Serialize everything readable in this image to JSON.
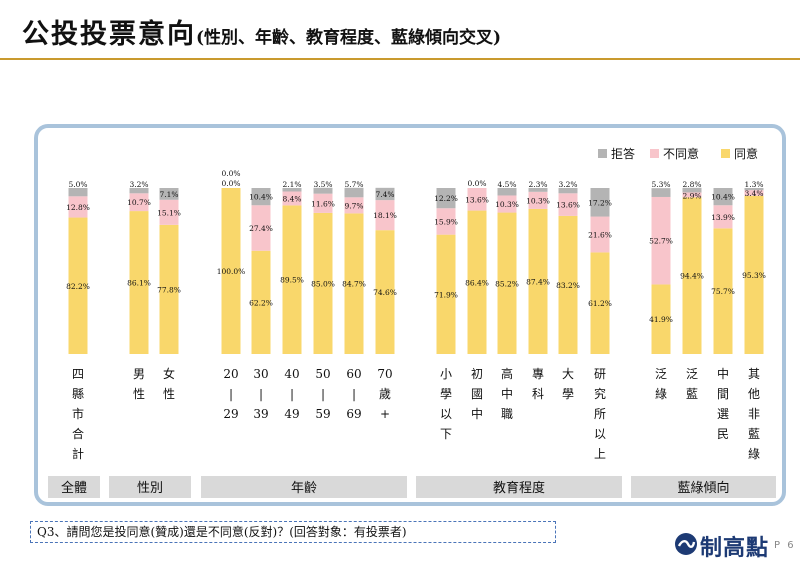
{
  "header": {
    "title": "公投投票意向",
    "subtitle": "(性別、年齡、教育程度、藍綠傾向交叉)"
  },
  "question": "Q3、請問您是投同意(贊成)還是不同意(反對)？(回答對象：有投票者)",
  "logo": {
    "text": "制高點",
    "icon": "wave-logo-icon"
  },
  "page_number": "P 6",
  "colors": {
    "agree": "#F9D76B",
    "disagree": "#F8C5CB",
    "refuse": "#B4B4B4",
    "group_bg": "#D9D9D9",
    "frame": "#A9C3DB",
    "title_rule": "#C99A2E"
  },
  "chart_data": {
    "type": "bar",
    "stacked": true,
    "legend_position": "top-right",
    "grid": false,
    "ylim": [
      0,
      100
    ],
    "series": [
      {
        "name": "同意",
        "key": "agree"
      },
      {
        "name": "不同意",
        "key": "disagree"
      },
      {
        "name": "拒答",
        "key": "refuse"
      }
    ],
    "legend_order": [
      "refuse",
      "disagree",
      "agree"
    ],
    "categories": [
      {
        "label": "四縣市合計",
        "group": 0,
        "agree": 82.2,
        "disagree": 12.8,
        "refuse": 5.0,
        "labels": {
          "agree": "82.2%",
          "disagree": "12.8%",
          "refuse": "5.0%"
        }
      },
      {
        "label": "男性",
        "group": 1,
        "agree": 86.1,
        "disagree": 10.7,
        "refuse": 3.2,
        "labels": {
          "agree": "86.1%",
          "disagree": "10.7%",
          "refuse": "3.2%"
        }
      },
      {
        "label": "女性",
        "group": 1,
        "agree": 77.8,
        "disagree": 15.1,
        "refuse": 7.1,
        "labels": {
          "agree": "77.8%",
          "disagree": "15.1%",
          "refuse": "7.1%"
        }
      },
      {
        "label": [
          "20",
          "|",
          "29"
        ],
        "group": 2,
        "agree": 100.0,
        "disagree": 0.0,
        "refuse": 0.0,
        "labels": {
          "agree": "100.0%",
          "disagree": "0.0%",
          "refuse": "0.0%"
        }
      },
      {
        "label": [
          "30",
          "|",
          "39"
        ],
        "group": 2,
        "agree": 62.2,
        "disagree": 27.4,
        "refuse": 10.4,
        "labels": {
          "agree": "62.2%",
          "disagree": "27.4%",
          "refuse": "10.4%"
        }
      },
      {
        "label": [
          "40",
          "|",
          "49"
        ],
        "group": 2,
        "agree": 89.5,
        "disagree": 8.4,
        "refuse": 2.1,
        "labels": {
          "agree": "89.5%",
          "disagree": "8.4%",
          "refuse": "2.1%"
        }
      },
      {
        "label": [
          "50",
          "|",
          "59"
        ],
        "group": 2,
        "agree": 85.0,
        "disagree": 11.6,
        "refuse": 3.5,
        "labels": {
          "agree": "85.0%",
          "disagree": "11.6%",
          "refuse": "3.5%"
        }
      },
      {
        "label": [
          "60",
          "|",
          "69"
        ],
        "group": 2,
        "agree": 84.7,
        "disagree": 9.7,
        "refuse": 5.7,
        "labels": {
          "agree": "84.7%",
          "disagree": "9.7%",
          "refuse": "5.7%"
        }
      },
      {
        "label": [
          "70",
          "歲",
          "+"
        ],
        "group": 2,
        "agree": 74.6,
        "disagree": 18.1,
        "refuse": 7.4,
        "labels": {
          "agree": "74.6%",
          "disagree": "18.1%",
          "refuse": "7.4%"
        }
      },
      {
        "label": "小學以下",
        "group": 3,
        "agree": 71.9,
        "disagree": 15.9,
        "refuse": 12.2,
        "labels": {
          "agree": "71.9%",
          "disagree": "15.9%",
          "refuse": "12.2%"
        }
      },
      {
        "label": "初國中",
        "group": 3,
        "agree": 86.4,
        "disagree": 13.6,
        "refuse": 0.0,
        "labels": {
          "agree": "86.4%",
          "disagree": "13.6%",
          "refuse": "0.0%"
        }
      },
      {
        "label": "高中職",
        "group": 3,
        "agree": 85.2,
        "disagree": 10.3,
        "refuse": 4.5,
        "labels": {
          "agree": "85.2%",
          "disagree": "10.3%",
          "refuse": "4.5%"
        }
      },
      {
        "label": "專科",
        "group": 3,
        "agree": 87.4,
        "disagree": 10.3,
        "refuse": 2.3,
        "labels": {
          "agree": "87.4%",
          "disagree": "10.3%",
          "refuse": "2.3%"
        }
      },
      {
        "label": "大學",
        "group": 3,
        "agree": 83.2,
        "disagree": 13.6,
        "refuse": 3.2,
        "labels": {
          "agree": "83.2%",
          "disagree": "13.6%",
          "refuse": "3.2%"
        }
      },
      {
        "label": "研究所以上",
        "group": 3,
        "agree": 61.2,
        "disagree": 21.6,
        "refuse": 17.2,
        "labels": {
          "agree": "61.2%",
          "disagree": "21.6%",
          "refuse": "17.2%"
        }
      },
      {
        "label": "泛綠",
        "group": 4,
        "agree": 41.9,
        "disagree": 52.7,
        "refuse": 5.3,
        "labels": {
          "agree": "41.9%",
          "disagree": "52.7%",
          "refuse": "5.3%"
        }
      },
      {
        "label": "泛藍",
        "group": 4,
        "agree": 94.4,
        "disagree": 2.9,
        "refuse": 2.8,
        "labels": {
          "agree": "94.4%",
          "disagree": "2.9%",
          "refuse": "2.8%"
        }
      },
      {
        "label": "中間選民",
        "group": 4,
        "agree": 75.7,
        "disagree": 13.9,
        "refuse": 10.4,
        "labels": {
          "agree": "75.7%",
          "disagree": "13.9%",
          "refuse": "10.4%"
        }
      },
      {
        "label": "其他非藍綠",
        "group": 4,
        "agree": 95.3,
        "disagree": 3.4,
        "refuse": 1.3,
        "labels": {
          "agree": "95.3%",
          "disagree": "3.4%",
          "refuse": "1.3%"
        }
      }
    ],
    "groups": [
      {
        "label": "全體",
        "first": 0,
        "last": 0
      },
      {
        "label": "性別",
        "first": 1,
        "last": 2
      },
      {
        "label": "年齡",
        "first": 3,
        "last": 8
      },
      {
        "label": "教育程度",
        "first": 9,
        "last": 14
      },
      {
        "label": "藍綠傾向",
        "first": 15,
        "last": 18
      }
    ]
  }
}
